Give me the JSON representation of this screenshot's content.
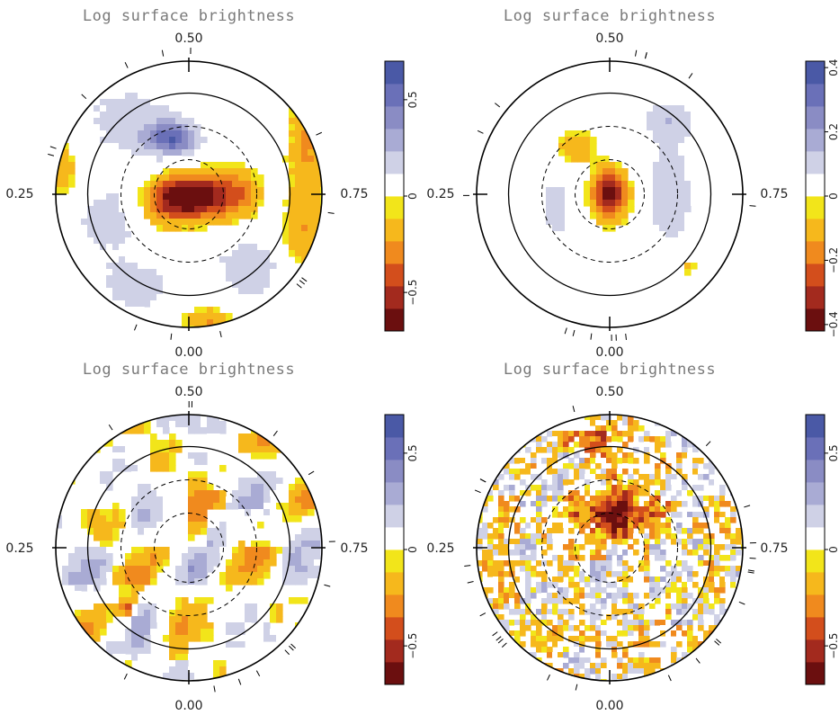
{
  "colors": {
    "scale": [
      "#6b0f0f",
      "#a32a1e",
      "#d34e1c",
      "#f08a1e",
      "#f6b81c",
      "#f2e51a",
      "#ffffff",
      "#cfd1e6",
      "#a9abd4",
      "#8a8cc4",
      "#6a70b8",
      "#4a59a6"
    ],
    "axis": "#000000"
  },
  "panels": [
    {
      "title": "Log surface brightness",
      "labels": {
        "top": "0.50",
        "left": "0.25",
        "right": "0.75",
        "bottom": "0.00"
      },
      "colorbar": {
        "ticks": [
          "0.5",
          "0",
          "−0.5"
        ],
        "tick_values": [
          0.5,
          0,
          -0.5
        ],
        "range": [
          -0.7,
          0.7
        ]
      },
      "pattern": "central-dark"
    },
    {
      "title": "Log surface brightness",
      "labels": {
        "top": "0.50",
        "left": "0.25",
        "right": "0.75",
        "bottom": "0.00"
      },
      "colorbar": {
        "ticks": [
          "0.4",
          "0.2",
          "0",
          "−0.2",
          "−0.4"
        ],
        "tick_values": [
          0.4,
          0.2,
          0,
          -0.2,
          -0.4
        ],
        "range": [
          -0.42,
          0.42
        ]
      },
      "pattern": "central-spot"
    },
    {
      "title": "Log surface brightness",
      "labels": {
        "top": "0.50",
        "left": "0.25",
        "right": "0.75",
        "bottom": "0.00"
      },
      "colorbar": {
        "ticks": [
          "0.5",
          "0",
          "−0.5"
        ],
        "tick_values": [
          0.5,
          0,
          -0.5
        ],
        "range": [
          -0.7,
          0.7
        ]
      },
      "pattern": "patchy"
    },
    {
      "title": "Log surface brightness",
      "labels": {
        "top": "0.50",
        "left": "0.25",
        "right": "0.75",
        "bottom": "0.00"
      },
      "colorbar": {
        "ticks": [
          "0.5",
          "0",
          "−0.5"
        ],
        "tick_values": [
          0.5,
          0,
          -0.5
        ],
        "range": [
          -0.7,
          0.7
        ]
      },
      "pattern": "noisy"
    }
  ],
  "chart_data": {
    "type": "heatmap",
    "projection": "polar",
    "colorbar_levels": 12,
    "panels": 4
  }
}
